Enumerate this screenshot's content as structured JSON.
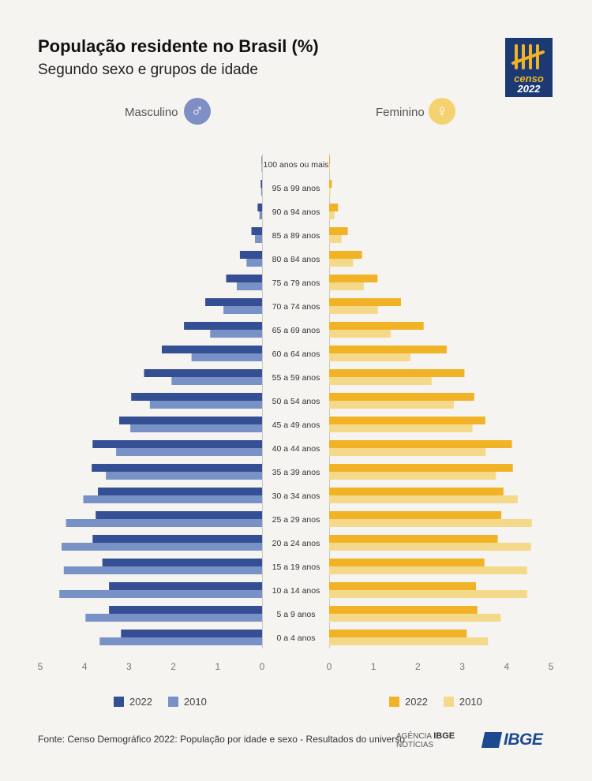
{
  "header": {
    "title": "População residente no Brasil (%)",
    "subtitle": "Segundo sexo e grupos de idade"
  },
  "logo": {
    "line1": "censo",
    "line2": "2022"
  },
  "sex_labels": {
    "male": "Masculino",
    "female": "Feminino",
    "male_icon": "male-symbol-icon",
    "female_icon": "female-symbol-icon",
    "male_symbol": "♂",
    "female_symbol": "♀"
  },
  "colors": {
    "male_2022": "#344f93",
    "male_2010": "#7892c8",
    "female_2022": "#f1b325",
    "female_2010": "#f5d98a"
  },
  "legend": {
    "male": [
      {
        "label": "2022"
      },
      {
        "label": "2010"
      }
    ],
    "female": [
      {
        "label": "2022"
      },
      {
        "label": "2010"
      }
    ]
  },
  "chart_data": {
    "type": "bar",
    "orientation": "horizontal-population-pyramid",
    "title": "População residente no Brasil (%)",
    "subtitle": "Segundo sexo e grupos de idade",
    "categories": [
      "100 anos ou mais",
      "95 a 99 anos",
      "90 a 94 anos",
      "85 a 89 anos",
      "80 a 84 anos",
      "75 a 79 anos",
      "70 a 74 anos",
      "65 a 69 anos",
      "60 a 64 anos",
      "55 a 59 anos",
      "50 a 54 anos",
      "45 a 49 anos",
      "40 a 44 anos",
      "35 a 39 anos",
      "30 a 34 anos",
      "25 a 29 anos",
      "20 a 24 anos",
      "15 a 19 anos",
      "10 a 14 anos",
      "5 a 9 anos",
      "0 a 4 anos"
    ],
    "series": [
      {
        "name": "Masculino 2022",
        "values": [
          0.01,
          0.03,
          0.1,
          0.24,
          0.5,
          0.81,
          1.28,
          1.76,
          2.26,
          2.66,
          2.95,
          3.22,
          3.82,
          3.84,
          3.7,
          3.75,
          3.82,
          3.6,
          3.45,
          3.45,
          3.18
        ]
      },
      {
        "name": "Masculino 2010",
        "values": [
          0.01,
          0.02,
          0.06,
          0.16,
          0.35,
          0.57,
          0.87,
          1.17,
          1.59,
          2.04,
          2.53,
          2.97,
          3.29,
          3.52,
          4.03,
          4.42,
          4.52,
          4.47,
          4.57,
          3.98,
          3.66
        ]
      },
      {
        "name": "Feminino 2022",
        "values": [
          0.02,
          0.06,
          0.2,
          0.42,
          0.74,
          1.09,
          1.62,
          2.13,
          2.65,
          3.05,
          3.27,
          3.52,
          4.12,
          4.14,
          3.93,
          3.88,
          3.8,
          3.5,
          3.31,
          3.34,
          3.1
        ]
      },
      {
        "name": "Feminino 2010",
        "values": [
          0.01,
          0.03,
          0.12,
          0.28,
          0.54,
          0.78,
          1.1,
          1.39,
          1.83,
          2.31,
          2.81,
          3.23,
          3.53,
          3.76,
          4.25,
          4.57,
          4.55,
          4.46,
          4.46,
          3.87,
          3.58
        ]
      }
    ],
    "x_ticks_male": [
      "5",
      "4",
      "3",
      "2",
      "1",
      "0"
    ],
    "x_ticks_female": [
      "0",
      "1",
      "2",
      "3",
      "4",
      "5"
    ],
    "xlim": [
      0,
      5
    ],
    "grid": false,
    "legend": "bottom"
  },
  "footer": {
    "source": "Fonte: Censo Demográfico 2022: População por idade e sexo - Resultados do universo",
    "agencia_line1": "AGÊNCIA",
    "agencia_bold": "IBGE",
    "agencia_line2": "NOTÍCIAS",
    "ibge": "IBGE"
  }
}
